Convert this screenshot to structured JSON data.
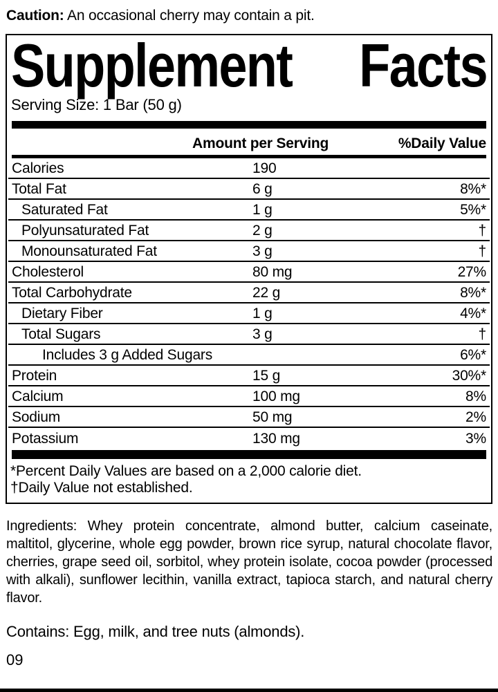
{
  "caution": {
    "label": "Caution:",
    "text": " An occasional cherry may contain a pit."
  },
  "panel": {
    "title_left": "Supplement",
    "title_right": "Facts",
    "serving_size": "Serving Size: 1 Bar (50 g)",
    "columns": {
      "amount": "Amount per Serving",
      "daily_value": "%Daily Value"
    },
    "rows": [
      {
        "label": "Calories",
        "amount": "190",
        "dv": "",
        "indent": 0
      },
      {
        "label": "Total Fat",
        "amount": "6 g",
        "dv": "8%*",
        "indent": 0
      },
      {
        "label": "Saturated Fat",
        "amount": "1 g",
        "dv": "5%*",
        "indent": 1
      },
      {
        "label": "Polyunsaturated Fat",
        "amount": "2 g",
        "dv": "†",
        "indent": 1
      },
      {
        "label": "Monounsaturated Fat",
        "amount": "3 g",
        "dv": "†",
        "indent": 1
      },
      {
        "label": "Cholesterol",
        "amount": "80 mg",
        "dv": "27%",
        "indent": 0
      },
      {
        "label": "Total Carbohydrate",
        "amount": "22 g",
        "dv": "8%*",
        "indent": 0
      },
      {
        "label": "Dietary Fiber",
        "amount": "1 g",
        "dv": "4%*",
        "indent": 1
      },
      {
        "label": "Total Sugars",
        "amount": "3 g",
        "dv": "†",
        "indent": 1
      },
      {
        "label": "Includes 3 g Added Sugars",
        "amount": "",
        "dv": "6%*",
        "indent": 2
      },
      {
        "label": "Protein",
        "amount": "15 g",
        "dv": "30%*",
        "indent": 0
      },
      {
        "label": "Calcium",
        "amount": "100 mg",
        "dv": "8%",
        "indent": 0
      },
      {
        "label": "Sodium",
        "amount": "50 mg",
        "dv": "2%",
        "indent": 0
      },
      {
        "label": "Potassium",
        "amount": "130 mg",
        "dv": "3%",
        "indent": 0
      }
    ],
    "footnotes": [
      "*Percent Daily Values are based on a 2,000 calorie diet.",
      "†Daily Value not established."
    ]
  },
  "ingredients": {
    "text": "Ingredients: Whey protein concentrate, almond butter, calcium caseinate, maltitol, glycerine, whole egg powder, brown rice syrup, natural chocolate flavor, cherries, grape seed oil, sorbitol, whey protein isolate, cocoa powder (processed with alkali), sunflower lecithin, vanilla extract, tapioca starch, and natural cherry flavor."
  },
  "contains": {
    "text": "Contains: Egg, milk, and tree nuts (almonds)."
  },
  "footer": {
    "code": "09"
  },
  "colors": {
    "ink": "#000000",
    "background": "#ffffff"
  }
}
